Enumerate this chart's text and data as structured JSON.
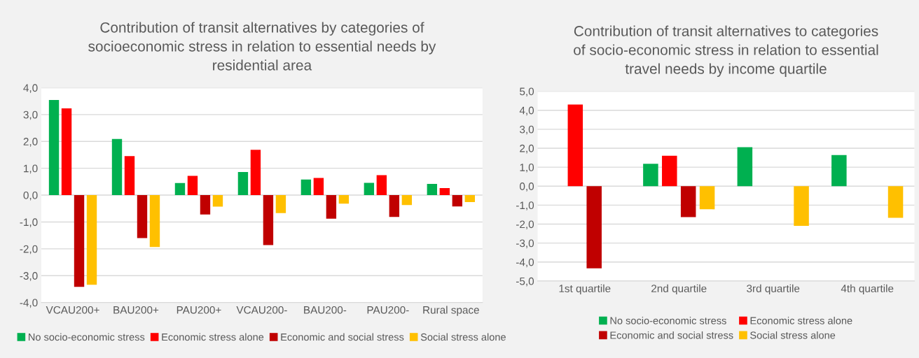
{
  "chart_data": [
    {
      "type": "bar",
      "title": "Contribution of transit alternatives by categories of socioeconomic stress in relation to essential needs by residential area",
      "categories": [
        "VCAU200+",
        "BAU200+",
        "PAU200+",
        "VCAU200-",
        "BAU200-",
        "PAU200-",
        "Rural space"
      ],
      "series": [
        {
          "name": "No socio-economic stress",
          "color": "#00b050",
          "values": [
            3.54,
            2.09,
            0.45,
            0.86,
            0.58,
            0.46,
            0.42
          ]
        },
        {
          "name": "Economic stress alone",
          "color": "#ff0000",
          "values": [
            3.23,
            1.45,
            0.72,
            1.69,
            0.64,
            0.74,
            0.26
          ]
        },
        {
          "name": "Economic and social stress",
          "color": "#c00000",
          "values": [
            -3.42,
            -1.6,
            -0.72,
            -1.86,
            -0.88,
            -0.81,
            -0.42
          ]
        },
        {
          "name": "Social stress alone",
          "color": "#ffc000",
          "values": [
            -3.34,
            -1.93,
            -0.43,
            -0.67,
            -0.32,
            -0.37,
            -0.26
          ]
        }
      ],
      "ylim": [
        -4,
        4
      ],
      "yticks": [
        {
          "value": -4,
          "label": "-4,0"
        },
        {
          "value": -3,
          "label": "-3,0"
        },
        {
          "value": -2,
          "label": "-2,0"
        },
        {
          "value": -1,
          "label": "-1,0"
        },
        {
          "value": 0,
          "label": "0,0"
        },
        {
          "value": 1,
          "label": "1,0"
        },
        {
          "value": 2,
          "label": "2,0"
        },
        {
          "value": 3,
          "label": "3,0"
        },
        {
          "value": 4,
          "label": "4,0"
        }
      ],
      "grid": "y",
      "legend": "bottom"
    },
    {
      "type": "bar",
      "title": "Contribution of transit alternatives to categories of socio-economic stress in relation to essential travel needs by income quartile",
      "categories": [
        "1st quartile",
        "2nd quartile",
        "3rd quartile",
        "4th quartile"
      ],
      "series": [
        {
          "name": "No socio-economic stress",
          "color": "#00b050",
          "values": [
            null,
            1.18,
            2.05,
            1.64
          ]
        },
        {
          "name": "Economic stress alone",
          "color": "#ff0000",
          "values": [
            4.3,
            1.6,
            null,
            null
          ]
        },
        {
          "name": "Economic and social stress",
          "color": "#c00000",
          "values": [
            -4.33,
            -1.63,
            null,
            null
          ]
        },
        {
          "name": "Social stress alone",
          "color": "#ffc000",
          "values": [
            null,
            -1.22,
            -2.09,
            -1.67
          ]
        }
      ],
      "ylim": [
        -5,
        5
      ],
      "yticks": [
        {
          "value": -5,
          "label": "-5,0"
        },
        {
          "value": -4,
          "label": "-4,0"
        },
        {
          "value": -3,
          "label": "-3,0"
        },
        {
          "value": -2,
          "label": "-2,0"
        },
        {
          "value": -1,
          "label": "-1,0"
        },
        {
          "value": 0,
          "label": "0,0"
        },
        {
          "value": 1,
          "label": "1,0"
        },
        {
          "value": 2,
          "label": "2,0"
        },
        {
          "value": 3,
          "label": "3,0"
        },
        {
          "value": 4,
          "label": "4,0"
        },
        {
          "value": 5,
          "label": "5,0"
        }
      ],
      "grid": "y",
      "legend": "bottom"
    }
  ]
}
